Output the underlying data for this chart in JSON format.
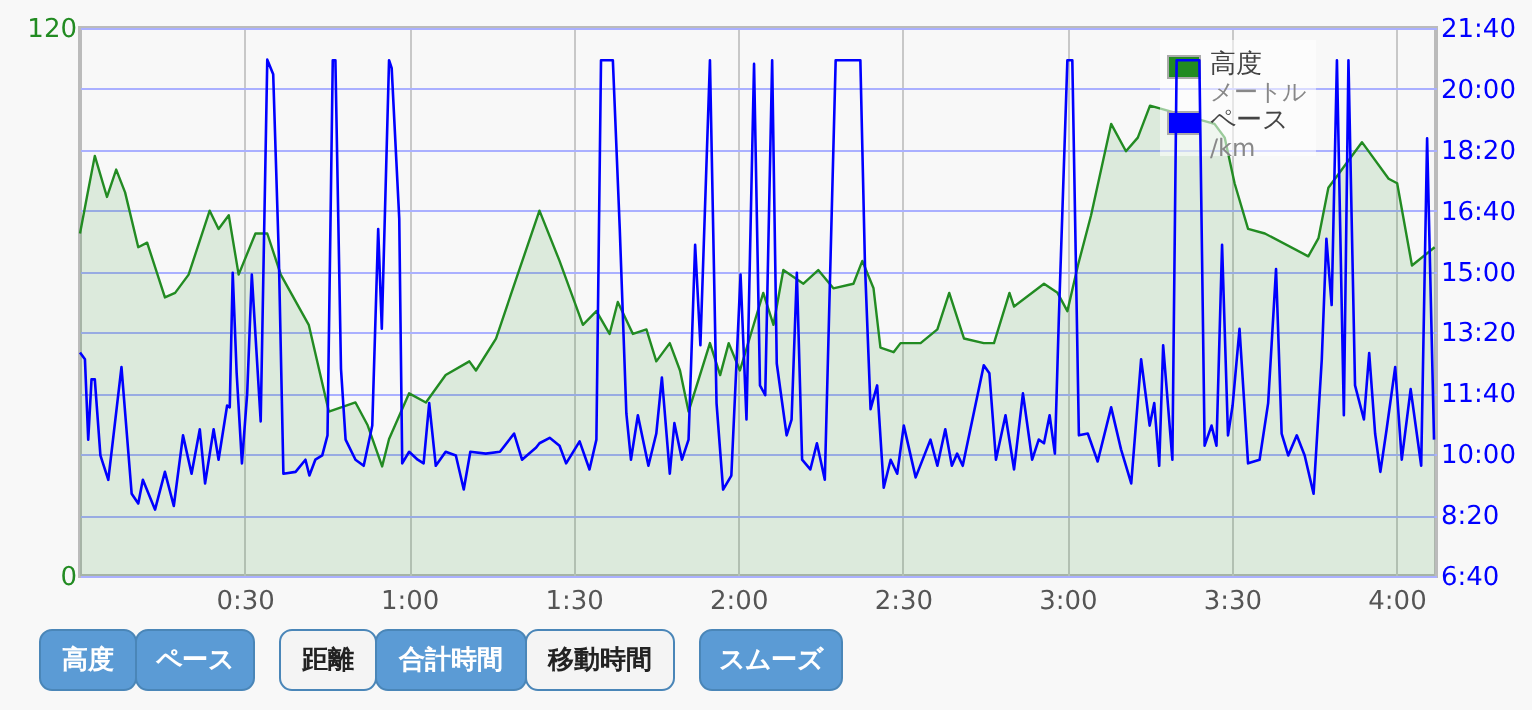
{
  "chart_data": {
    "type": "line",
    "xlim": [
      0,
      4.12
    ],
    "xticks": [
      {
        "value": 0.5,
        "label": "0:30"
      },
      {
        "value": 1,
        "label": "1:00"
      },
      {
        "value": 1.5,
        "label": "1:30"
      },
      {
        "value": 2,
        "label": "2:00"
      },
      {
        "value": 2.5,
        "label": "2:30"
      },
      {
        "value": 3,
        "label": "3:00"
      },
      {
        "value": 3.5,
        "label": "3:30"
      },
      {
        "value": 4,
        "label": "4:00"
      }
    ],
    "ylim": [
      0,
      120
    ],
    "yticks": [
      0,
      120
    ],
    "y2lim": [
      400,
      1300
    ],
    "y2ticks": [
      {
        "value": 400,
        "label": "6:40"
      },
      {
        "value": 500,
        "label": "8:20"
      },
      {
        "value": 600,
        "label": "10:00"
      },
      {
        "value": 700,
        "label": "11:40"
      },
      {
        "value": 800,
        "label": "13:20"
      },
      {
        "value": 900,
        "label": "15:00"
      },
      {
        "value": 1000,
        "label": "16:40"
      },
      {
        "value": 1100,
        "label": "18:20"
      },
      {
        "value": 1200,
        "label": "20:00"
      },
      {
        "value": 1300,
        "label": "21:40"
      }
    ],
    "grid": true,
    "legend": "top right",
    "annotations": [
      "メートル",
      "/km",
      "高度",
      "ペース",
      "距離",
      "合計時間",
      "移動時間",
      "スムーズ"
    ],
    "series": [
      {
        "name": "高度",
        "color": "#228b22",
        "type": "area",
        "x": [
          0,
          0.021,
          0.045,
          0.082,
          0.11,
          0.137,
          0.177,
          0.204,
          0.258,
          0.289,
          0.33,
          0.394,
          0.421,
          0.452,
          0.482,
          0.533,
          0.569,
          0.61,
          0.695,
          0.756,
          0.837,
          0.874,
          0.918,
          0.939,
          1.0,
          1.051,
          1.111,
          1.183,
          1.203,
          1.264,
          1.325,
          1.396,
          1.457,
          1.528,
          1.569,
          1.609,
          1.634,
          1.68,
          1.721,
          1.751,
          1.792,
          1.823,
          1.849,
          1.914,
          1.945,
          1.971,
          2.005,
          2.076,
          2.107,
          2.137,
          2.198,
          2.243,
          2.289,
          2.35,
          2.377,
          2.411,
          2.432,
          2.472,
          2.493,
          2.554,
          2.605,
          2.641,
          2.686,
          2.746,
          2.777,
          2.824,
          2.838,
          2.929,
          2.97,
          3.0,
          3.032,
          3.072,
          3.133,
          3.178,
          3.214,
          3.251,
          3.447,
          3.478,
          3.508,
          3.549,
          3.6,
          3.732,
          3.763,
          3.793,
          3.834,
          3.895,
          3.976,
          4.002,
          4.047,
          4.116
        ],
        "values": [
          75,
          83,
          92,
          83,
          89,
          84,
          72,
          73,
          61,
          62,
          66,
          80,
          76,
          79,
          66,
          75,
          75,
          66,
          55,
          36,
          38,
          33,
          24,
          30,
          40,
          38,
          44,
          47,
          45,
          52,
          65,
          80,
          69,
          55,
          58,
          53,
          60,
          53,
          54,
          47,
          51,
          45,
          36,
          51,
          44,
          51,
          45,
          62,
          55,
          67,
          64,
          67,
          63,
          64,
          69,
          63,
          50,
          49,
          51,
          51,
          54,
          62,
          52,
          51,
          51,
          62,
          59,
          64,
          62,
          58,
          68,
          79,
          99,
          93,
          96,
          103,
          99,
          96,
          86,
          76,
          75,
          70,
          74,
          85,
          89,
          95,
          87,
          86,
          68,
          72
        ]
      },
      {
        "name": "ペース",
        "color": "#0000ff",
        "axis": "y2",
        "x": [
          0,
          0.015,
          0.025,
          0.035,
          0.045,
          0.062,
          0.086,
          0.126,
          0.157,
          0.177,
          0.191,
          0.228,
          0.258,
          0.285,
          0.313,
          0.339,
          0.364,
          0.38,
          0.406,
          0.421,
          0.447,
          0.455,
          0.464,
          0.476,
          0.492,
          0.508,
          0.522,
          0.549,
          0.569,
          0.587,
          0.604,
          0.618,
          0.655,
          0.685,
          0.697,
          0.715,
          0.736,
          0.752,
          0.768,
          0.776,
          0.793,
          0.807,
          0.837,
          0.862,
          0.888,
          0.906,
          0.917,
          0.939,
          0.947,
          0.97,
          0.979,
          1.0,
          1.026,
          1.044,
          1.061,
          1.081,
          1.111,
          1.142,
          1.166,
          1.186,
          1.233,
          1.276,
          1.319,
          1.343,
          1.386,
          1.396,
          1.427,
          1.457,
          1.477,
          1.518,
          1.548,
          1.569,
          1.583,
          1.619,
          1.64,
          1.66,
          1.674,
          1.695,
          1.727,
          1.751,
          1.768,
          1.792,
          1.806,
          1.829,
          1.849,
          1.869,
          1.885,
          1.914,
          1.934,
          1.954,
          1.979,
          2.007,
          2.025,
          2.048,
          2.066,
          2.082,
          2.103,
          2.117,
          2.147,
          2.162,
          2.178,
          2.194,
          2.219,
          2.239,
          2.263,
          2.296,
          2.371,
          2.385,
          2.402,
          2.422,
          2.442,
          2.463,
          2.483,
          2.503,
          2.539,
          2.584,
          2.605,
          2.629,
          2.649,
          2.665,
          2.682,
          2.746,
          2.763,
          2.783,
          2.812,
          2.838,
          2.865,
          2.893,
          2.913,
          2.929,
          2.946,
          2.962,
          2.974,
          3.0,
          3.015,
          3.035,
          3.062,
          3.092,
          3.133,
          3.163,
          3.194,
          3.224,
          3.25,
          3.264,
          3.279,
          3.291,
          3.319,
          3.332,
          3.401,
          3.417,
          3.438,
          3.453,
          3.47,
          3.488,
          3.502,
          3.523,
          3.549,
          3.584,
          3.61,
          3.634,
          3.651,
          3.671,
          3.697,
          3.721,
          3.748,
          3.773,
          3.787,
          3.803,
          3.819,
          3.84,
          3.854,
          3.874,
          3.901,
          3.917,
          3.935,
          3.951,
          3.97,
          3.996,
          4.016,
          4.043,
          4.075,
          4.093,
          4.114
        ],
        "values": [
          767,
          756,
          624,
          723,
          723,
          598,
          558,
          743,
          535,
          519,
          558,
          509,
          571,
          515,
          631,
          568,
          641,
          552,
          641,
          591,
          680,
          677,
          898,
          733,
          585,
          700,
          895,
          654,
          1248,
          1224,
          928,
          568,
          571,
          591,
          565,
          591,
          598,
          631,
          1247,
          1247,
          740,
          624,
          591,
          581,
          647,
          970,
          806,
          1247,
          1234,
          987,
          585,
          604,
          591,
          585,
          684,
          581,
          604,
          598,
          542,
          604,
          601,
          604,
          634,
          591,
          611,
          618,
          627,
          614,
          585,
          621,
          575,
          624,
          1247,
          1247,
          970,
          667,
          591,
          664,
          581,
          634,
          726,
          568,
          651,
          591,
          624,
          944,
          779,
          1247,
          684,
          542,
          565,
          895,
          657,
          1241,
          713,
          697,
          1247,
          749,
          631,
          657,
          898,
          591,
          575,
          618,
          558,
          1247,
          1247,
          911,
          674,
          713,
          545,
          591,
          568,
          647,
          562,
          624,
          581,
          641,
          581,
          601,
          581,
          746,
          733,
          591,
          664,
          575,
          700,
          591,
          624,
          618,
          664,
          601,
          822,
          1247,
          1247,
          631,
          634,
          588,
          677,
          608,
          552,
          756,
          647,
          684,
          581,
          779,
          591,
          1247,
          1247,
          614,
          647,
          614,
          944,
          631,
          680,
          806,
          585,
          591,
          684,
          904,
          634,
          598,
          631,
          598,
          535,
          756,
          954,
          845,
          1247,
          664,
          1247,
          713,
          657,
          766,
          634,
          571,
          641,
          743,
          591,
          707,
          581,
          1119,
          624
        ]
      }
    ]
  }
}
